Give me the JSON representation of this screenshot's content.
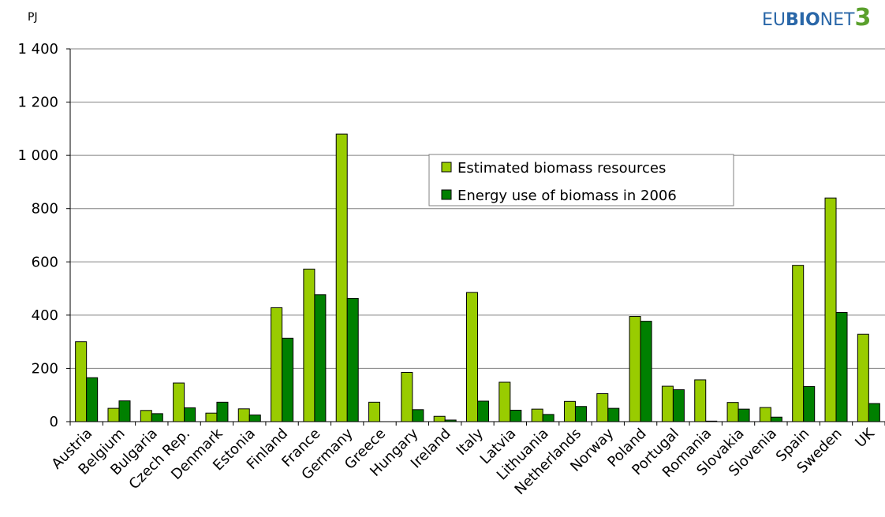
{
  "logo": {
    "part1": "EU",
    "part2": "BIO",
    "part3": "NET",
    "part4": "3"
  },
  "colors": {
    "resources": "#99cc00",
    "use": "#008000",
    "logo_blue": "#2a67a8",
    "logo_green": "#5aa02c"
  },
  "chart_data": {
    "type": "bar",
    "ylabel": "PJ",
    "ylim": [
      0,
      1400
    ],
    "yticks": [
      0,
      200,
      400,
      600,
      800,
      1000,
      1200,
      1400
    ],
    "ytick_labels": [
      "0",
      "200",
      "400",
      "600",
      "800",
      "1 000",
      "1 200",
      "1 400"
    ],
    "grid": true,
    "legend_position": "top-center",
    "categories": [
      "Austria",
      "Belgium",
      "Bulgaria",
      "Czech Rep.",
      "Denmark",
      "Estonia",
      "Finland",
      "France",
      "Germany",
      "Greece",
      "Hungary",
      "Ireland",
      "Italy",
      "Latvia",
      "Lithuania",
      "Netherlands",
      "Norway",
      "Poland",
      "Portugal",
      "Romania",
      "Slovakia",
      "Slovenia",
      "Spain",
      "Sweden",
      "UK"
    ],
    "series": [
      {
        "name": "Estimated biomass resources",
        "values": [
          300,
          50,
          42,
          145,
          32,
          48,
          428,
          573,
          1080,
          73,
          185,
          20,
          485,
          148,
          47,
          76,
          105,
          395,
          133,
          157,
          72,
          53,
          587,
          840,
          328
        ]
      },
      {
        "name": "Energy use of biomass in 2006",
        "values": [
          165,
          78,
          30,
          52,
          73,
          25,
          313,
          477,
          463,
          0,
          45,
          6,
          77,
          43,
          27,
          57,
          50,
          377,
          120,
          2,
          47,
          17,
          132,
          410,
          68
        ]
      }
    ]
  }
}
